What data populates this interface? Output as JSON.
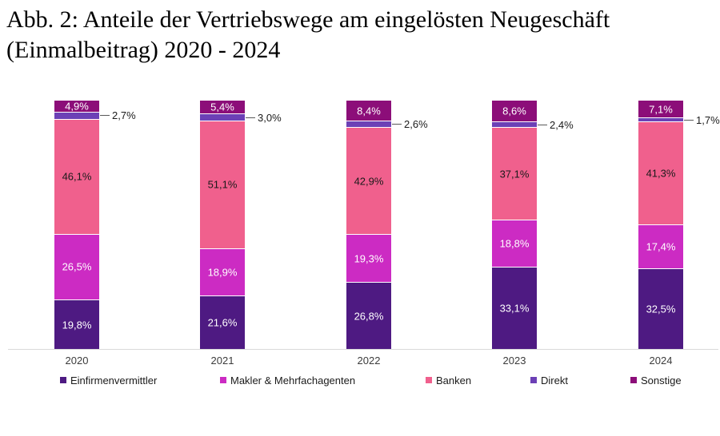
{
  "title": "Abb. 2: Anteile der Vertriebswege am eingelösten Neugeschäft (Einmalbeitrag) 2020 - 2024",
  "chart_data": {
    "type": "bar",
    "subtype": "stacked-100-percent",
    "categories": [
      "2020",
      "2021",
      "2022",
      "2023",
      "2024"
    ],
    "series": [
      {
        "name": "Einfirmenvermittler",
        "color": "#4E1A82",
        "label_color": "#ffffff",
        "label_style": "inside",
        "values": [
          19.8,
          21.6,
          26.8,
          33.1,
          32.5
        ]
      },
      {
        "name": "Makler & Mehrfachagenten",
        "color": "#CC2BC3",
        "label_color": "#ffffff",
        "label_style": "inside",
        "values": [
          26.5,
          18.9,
          19.3,
          18.8,
          17.4
        ]
      },
      {
        "name": "Banken",
        "color": "#F0608D",
        "label_color": "#1a1a1a",
        "label_style": "inside",
        "values": [
          46.1,
          51.1,
          42.9,
          37.1,
          41.3
        ]
      },
      {
        "name": "Direkt",
        "color": "#6C40B6",
        "label_color": "#1a1a1a",
        "label_style": "callout",
        "values": [
          2.7,
          3.0,
          2.6,
          2.4,
          1.7
        ]
      },
      {
        "name": "Sonstige",
        "color": "#8C0E79",
        "label_color": "#ffffff",
        "label_style": "inside",
        "values": [
          4.9,
          5.4,
          8.4,
          8.6,
          7.1
        ]
      }
    ],
    "value_format": "percent-german-1dp",
    "ylim": [
      0,
      100
    ],
    "grid": false,
    "legend_position": "bottom",
    "axis_line_color": "#d9d9d9",
    "callout_line_color": "#595959"
  }
}
